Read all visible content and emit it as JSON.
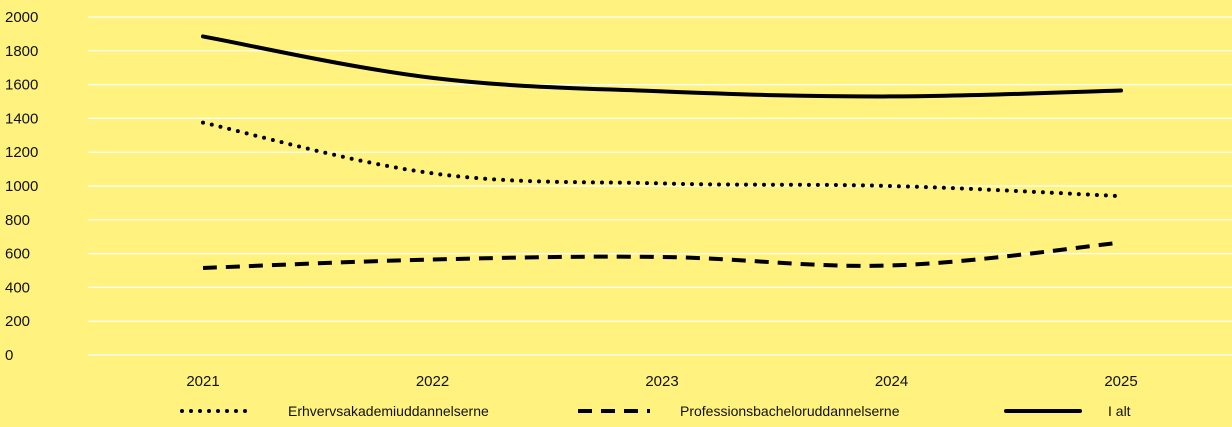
{
  "chart_data": {
    "type": "line",
    "title": "",
    "xlabel": "",
    "ylabel": "",
    "x": [
      "2021",
      "2022",
      "2023",
      "2024",
      "2025"
    ],
    "ylim": [
      0,
      2000
    ],
    "yticks": [
      "0",
      "200",
      "400",
      "600",
      "800",
      "1000",
      "1200",
      "1400",
      "1600",
      "1800",
      "2000"
    ],
    "grid": true,
    "legend_position": "bottom",
    "series": [
      {
        "name": "Erhvervsakademiuddannelserne",
        "style": "dotted",
        "values": [
          1375,
          1075,
          1015,
          1000,
          940
        ]
      },
      {
        "name": "Professionsbacheloruddannelserne",
        "style": "dashed",
        "values": [
          515,
          565,
          580,
          530,
          665
        ]
      },
      {
        "name": "I alt",
        "style": "solid",
        "values": [
          1885,
          1640,
          1560,
          1530,
          1565
        ]
      }
    ],
    "colors": {
      "background": "#fff27f",
      "gridline": "#ffffff",
      "line": "#000000",
      "text": "#111111"
    }
  }
}
